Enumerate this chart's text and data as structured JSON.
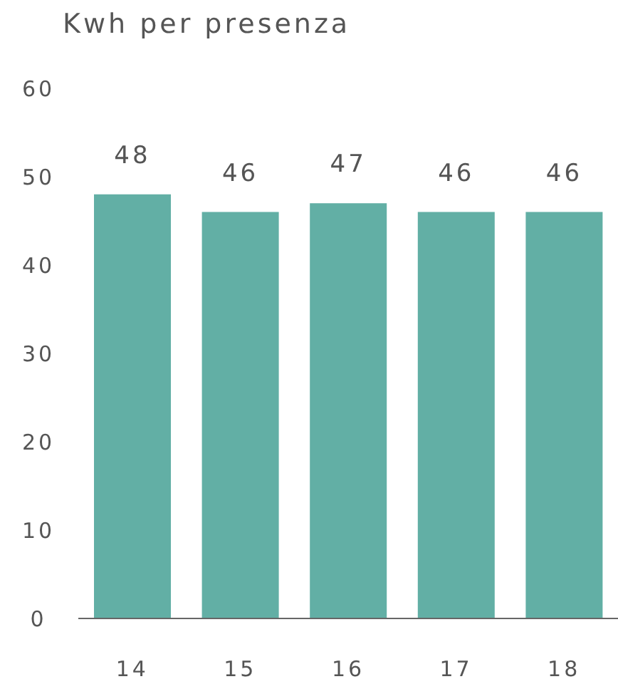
{
  "chart_data": {
    "type": "bar",
    "title": "Kwh per presenza",
    "categories": [
      "14",
      "15",
      "16",
      "17",
      "18"
    ],
    "values": [
      48,
      46,
      47,
      46,
      46
    ],
    "color": "#62afa5",
    "ylim": [
      0,
      60
    ],
    "yticks": [
      0,
      10,
      20,
      30,
      40,
      50,
      60
    ],
    "data_labels": true,
    "grid": false
  }
}
